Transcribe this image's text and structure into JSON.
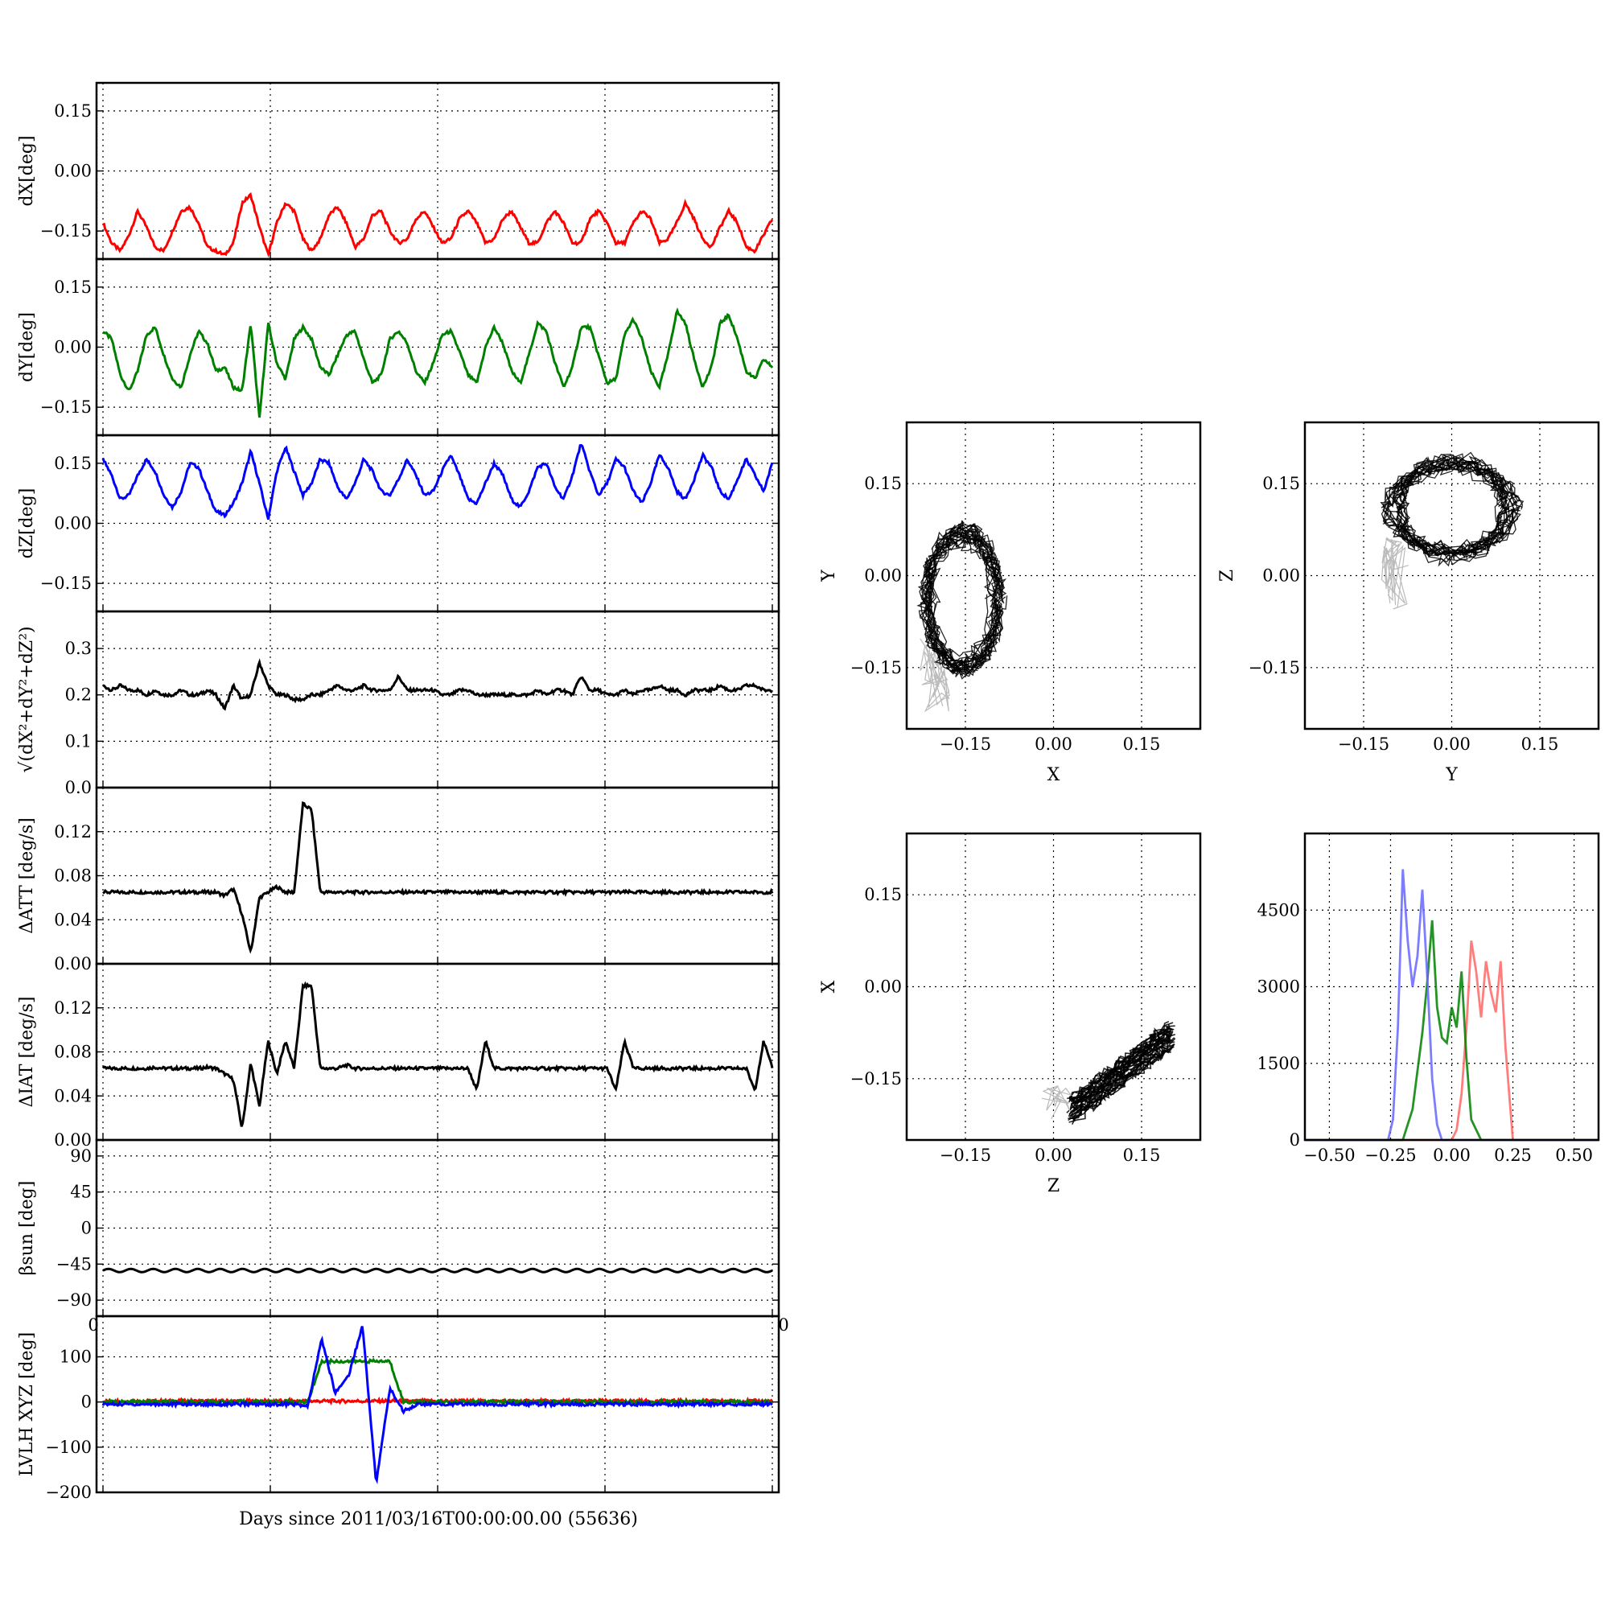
{
  "figure_xlabel": "Days since 2011/03/16T00:00:00.00 (55636)",
  "chart_data": [
    {
      "id": "dX",
      "type": "line",
      "ylabel": "dX[deg]",
      "ylim": [
        -0.22,
        0.22
      ],
      "yticks": [
        "0.15",
        "0.00",
        "−0.15"
      ],
      "ytick_values": [
        0.15,
        0.0,
        -0.15
      ],
      "grid": true,
      "series": [
        {
          "color": "#ff0000",
          "mean": -0.125,
          "amplitude": 0.055,
          "cycles": 16,
          "y": [
            -0.13,
            -0.18,
            -0.2,
            -0.16,
            -0.1,
            -0.14,
            -0.19,
            -0.2,
            -0.15,
            -0.1,
            -0.09,
            -0.13,
            -0.19,
            -0.2,
            -0.21,
            -0.18,
            -0.08,
            -0.06,
            -0.14,
            -0.21,
            -0.13,
            -0.08,
            -0.1,
            -0.17,
            -0.2,
            -0.17,
            -0.11,
            -0.09,
            -0.13,
            -0.19,
            -0.17,
            -0.11,
            -0.1,
            -0.15,
            -0.18,
            -0.17,
            -0.12,
            -0.1,
            -0.14,
            -0.18,
            -0.17,
            -0.12,
            -0.1,
            -0.13,
            -0.18,
            -0.17,
            -0.12,
            -0.1,
            -0.14,
            -0.18,
            -0.18,
            -0.13,
            -0.1,
            -0.13,
            -0.18,
            -0.18,
            -0.12,
            -0.1,
            -0.13,
            -0.18,
            -0.18,
            -0.13,
            -0.1,
            -0.12,
            -0.18,
            -0.17,
            -0.13,
            -0.08,
            -0.12,
            -0.17,
            -0.19,
            -0.14,
            -0.1,
            -0.13,
            -0.19,
            -0.2,
            -0.16,
            -0.12
          ]
        }
      ]
    },
    {
      "id": "dY",
      "type": "line",
      "ylabel": "dY[deg]",
      "ylim": [
        -0.22,
        0.22
      ],
      "yticks": [
        "0.15",
        "0.00",
        "−0.15"
      ],
      "ytick_values": [
        0.15,
        0.0,
        -0.15
      ],
      "grid": true,
      "series": [
        {
          "color": "#008000",
          "y": [
            0.04,
            0.02,
            -0.07,
            -0.11,
            -0.06,
            0.03,
            0.05,
            -0.02,
            -0.08,
            -0.1,
            -0.02,
            0.04,
            0.01,
            -0.06,
            -0.05,
            -0.1,
            -0.11,
            0.06,
            -0.18,
            0.06,
            -0.04,
            -0.08,
            0.02,
            0.05,
            0.02,
            -0.05,
            -0.07,
            -0.02,
            0.03,
            0.04,
            -0.03,
            -0.09,
            -0.07,
            0.02,
            0.04,
            0.01,
            -0.06,
            -0.09,
            -0.04,
            0.03,
            0.04,
            -0.01,
            -0.07,
            -0.09,
            0.0,
            0.05,
            0.01,
            -0.06,
            -0.09,
            -0.02,
            0.06,
            0.04,
            -0.04,
            -0.1,
            -0.05,
            0.05,
            0.05,
            -0.02,
            -0.09,
            -0.08,
            0.03,
            0.07,
            0.02,
            -0.06,
            -0.1,
            -0.02,
            0.09,
            0.06,
            -0.03,
            -0.1,
            -0.05,
            0.06,
            0.08,
            0.02,
            -0.06,
            -0.08,
            -0.03,
            -0.05
          ]
        }
      ]
    },
    {
      "id": "dZ",
      "type": "line",
      "ylabel": "dZ[deg]",
      "ylim": [
        -0.22,
        0.22
      ],
      "yticks": [
        "0.15",
        "0.00",
        "−0.15"
      ],
      "ytick_values": [
        0.15,
        0.0,
        -0.15
      ],
      "grid": true,
      "series": [
        {
          "color": "#0000ff",
          "y": [
            0.16,
            0.12,
            0.06,
            0.07,
            0.12,
            0.16,
            0.13,
            0.07,
            0.04,
            0.08,
            0.15,
            0.14,
            0.08,
            0.03,
            0.02,
            0.05,
            0.1,
            0.18,
            0.1,
            0.01,
            0.13,
            0.19,
            0.13,
            0.07,
            0.1,
            0.16,
            0.15,
            0.09,
            0.06,
            0.1,
            0.16,
            0.13,
            0.08,
            0.07,
            0.11,
            0.16,
            0.12,
            0.07,
            0.08,
            0.13,
            0.17,
            0.12,
            0.06,
            0.05,
            0.1,
            0.15,
            0.12,
            0.06,
            0.04,
            0.08,
            0.14,
            0.15,
            0.09,
            0.06,
            0.12,
            0.2,
            0.13,
            0.07,
            0.1,
            0.16,
            0.14,
            0.08,
            0.05,
            0.1,
            0.17,
            0.14,
            0.08,
            0.06,
            0.11,
            0.17,
            0.14,
            0.08,
            0.06,
            0.11,
            0.16,
            0.12,
            0.08,
            0.15
          ]
        }
      ]
    },
    {
      "id": "norm",
      "type": "line",
      "ylabel": "√(dX²+dY²+dZ²)",
      "ylim": [
        0.0,
        0.38
      ],
      "yticks": [
        "0.3",
        "0.2",
        "0.1",
        "0.0"
      ],
      "ytick_values": [
        0.3,
        0.2,
        0.1,
        0.0
      ],
      "grid": true,
      "series": [
        {
          "color": "#000000",
          "y": [
            0.22,
            0.21,
            0.22,
            0.21,
            0.21,
            0.2,
            0.21,
            0.2,
            0.2,
            0.21,
            0.2,
            0.2,
            0.21,
            0.2,
            0.17,
            0.22,
            0.19,
            0.2,
            0.27,
            0.22,
            0.2,
            0.2,
            0.19,
            0.19,
            0.2,
            0.2,
            0.21,
            0.22,
            0.21,
            0.21,
            0.22,
            0.21,
            0.21,
            0.21,
            0.24,
            0.21,
            0.21,
            0.21,
            0.21,
            0.2,
            0.2,
            0.21,
            0.21,
            0.2,
            0.2,
            0.2,
            0.2,
            0.2,
            0.2,
            0.2,
            0.21,
            0.2,
            0.21,
            0.21,
            0.2,
            0.24,
            0.21,
            0.21,
            0.2,
            0.2,
            0.21,
            0.2,
            0.21,
            0.21,
            0.22,
            0.21,
            0.21,
            0.2,
            0.21,
            0.21,
            0.21,
            0.22,
            0.21,
            0.21,
            0.22,
            0.22,
            0.21,
            0.21
          ]
        }
      ]
    },
    {
      "id": "datt",
      "type": "line",
      "ylabel": "ΔATT [deg/s]",
      "ylim": [
        0.0,
        0.16
      ],
      "yticks": [
        "0.12",
        "0.08",
        "0.04",
        "0.00"
      ],
      "ytick_values": [
        0.12,
        0.08,
        0.04,
        0.0
      ],
      "grid": true,
      "series": [
        {
          "color": "#000000",
          "y": [
            0.065,
            0.065,
            0.065,
            0.065,
            0.065,
            0.065,
            0.065,
            0.065,
            0.065,
            0.065,
            0.065,
            0.065,
            0.065,
            0.065,
            0.062,
            0.068,
            0.045,
            0.01,
            0.06,
            0.065,
            0.07,
            0.065,
            0.065,
            0.145,
            0.14,
            0.065,
            0.065,
            0.065,
            0.065,
            0.065,
            0.065,
            0.065,
            0.065,
            0.065,
            0.065,
            0.065,
            0.065,
            0.065,
            0.065,
            0.065,
            0.065,
            0.065,
            0.065,
            0.065,
            0.065,
            0.065,
            0.065,
            0.065,
            0.065,
            0.065,
            0.065,
            0.065,
            0.065,
            0.065,
            0.065,
            0.065,
            0.065,
            0.065,
            0.065,
            0.065,
            0.065,
            0.065,
            0.065,
            0.065,
            0.065,
            0.065,
            0.065,
            0.065,
            0.065,
            0.065,
            0.065,
            0.065,
            0.065,
            0.065,
            0.065,
            0.065,
            0.065,
            0.065
          ]
        }
      ]
    },
    {
      "id": "diat",
      "type": "line",
      "ylabel": "ΔIAT [deg/s]",
      "ylim": [
        0.0,
        0.16
      ],
      "yticks": [
        "0.12",
        "0.08",
        "0.04",
        "0.00"
      ],
      "ytick_values": [
        0.12,
        0.08,
        0.04,
        0.0
      ],
      "grid": true,
      "series": [
        {
          "color": "#000000",
          "y": [
            0.065,
            0.065,
            0.065,
            0.065,
            0.065,
            0.065,
            0.066,
            0.065,
            0.065,
            0.065,
            0.065,
            0.065,
            0.066,
            0.065,
            0.06,
            0.055,
            0.01,
            0.07,
            0.03,
            0.09,
            0.06,
            0.09,
            0.065,
            0.14,
            0.14,
            0.065,
            0.065,
            0.065,
            0.068,
            0.065,
            0.065,
            0.065,
            0.065,
            0.065,
            0.065,
            0.065,
            0.065,
            0.065,
            0.065,
            0.065,
            0.065,
            0.065,
            0.065,
            0.045,
            0.09,
            0.065,
            0.065,
            0.065,
            0.065,
            0.065,
            0.065,
            0.065,
            0.065,
            0.065,
            0.065,
            0.065,
            0.065,
            0.065,
            0.065,
            0.045,
            0.09,
            0.065,
            0.065,
            0.065,
            0.065,
            0.065,
            0.065,
            0.065,
            0.065,
            0.065,
            0.065,
            0.065,
            0.065,
            0.065,
            0.065,
            0.045,
            0.09,
            0.065
          ]
        }
      ]
    },
    {
      "id": "beta",
      "type": "line",
      "ylabel": "βsun [deg]",
      "ylim": [
        -110,
        110
      ],
      "yticks": [
        "90",
        "45",
        "0",
        "−45",
        "−90"
      ],
      "ytick_values": [
        90,
        45,
        0,
        -45,
        -90
      ],
      "grid": true,
      "series": [
        {
          "color": "#000000",
          "mean": -53,
          "amplitude": 2,
          "cycles": 30
        }
      ],
      "x_tick_left": "0",
      "x_tick_right": "0"
    },
    {
      "id": "lvlh",
      "type": "line",
      "ylabel": "LVLH XYZ [deg]",
      "ylim": [
        -200,
        190
      ],
      "yticks": [
        "100",
        "0",
        "−100",
        "−200"
      ],
      "ytick_values": [
        100,
        0,
        -100,
        -200
      ],
      "grid": true,
      "series": [
        {
          "color": "#ff0000",
          "y": [
            2,
            2,
            2,
            2,
            2,
            2,
            2,
            2,
            2,
            2,
            2,
            2,
            2,
            2,
            2,
            2,
            2,
            2,
            2,
            2,
            2,
            2,
            2,
            2,
            2,
            2,
            2,
            2,
            2,
            2,
            2,
            2,
            2,
            2,
            2,
            2,
            2,
            2,
            2,
            2,
            2,
            2,
            2,
            2,
            2,
            2,
            2,
            2,
            2,
            2
          ]
        },
        {
          "color": "#008000",
          "y": [
            0,
            0,
            0,
            0,
            0,
            0,
            0,
            0,
            0,
            0,
            0,
            0,
            0,
            0,
            0,
            0,
            90,
            90,
            90,
            90,
            90,
            90,
            0,
            0,
            0,
            0,
            0,
            0,
            0,
            0,
            0,
            0,
            0,
            0,
            0,
            0,
            0,
            0,
            0,
            0,
            0,
            0,
            0,
            0,
            0,
            0,
            0,
            0,
            0,
            0
          ]
        },
        {
          "color": "#0000ff",
          "y": [
            -5,
            -5,
            -5,
            -5,
            -5,
            -5,
            -5,
            -5,
            -5,
            -5,
            -5,
            -5,
            -5,
            -5,
            -5,
            -10,
            140,
            20,
            60,
            170,
            -180,
            30,
            -20,
            -5,
            -5,
            -5,
            -5,
            -5,
            -5,
            -5,
            -5,
            -5,
            -5,
            -5,
            -5,
            -5,
            -5,
            -5,
            -5,
            -5,
            -5,
            -5,
            -5,
            -5,
            -5,
            -5,
            -5,
            -5,
            -5,
            -5
          ]
        }
      ]
    },
    {
      "id": "XY",
      "type": "scatter",
      "xlabel": "X",
      "ylabel": "Y",
      "xlim": [
        -0.25,
        0.25
      ],
      "ylim": [
        -0.25,
        0.25
      ],
      "xticks": [
        "−0.15",
        "0.00",
        "0.15"
      ],
      "yticks": [
        "0.15",
        "0.00",
        "−0.15"
      ],
      "ring": {
        "cx": -0.155,
        "cy": -0.04,
        "rx": 0.06,
        "ry": 0.105,
        "color": "#000000"
      },
      "grid": true
    },
    {
      "id": "YZ",
      "type": "scatter",
      "xlabel": "Y",
      "ylabel": "Z",
      "xlim": [
        -0.25,
        0.25
      ],
      "ylim": [
        -0.25,
        0.25
      ],
      "xticks": [
        "−0.15",
        "0.00",
        "0.15"
      ],
      "yticks": [
        "0.15",
        "0.00",
        "−0.15"
      ],
      "ring": {
        "cx": 0.0,
        "cy": 0.11,
        "rx": 0.1,
        "ry": 0.075,
        "color": "#000000"
      },
      "grid": true
    },
    {
      "id": "ZX",
      "type": "scatter",
      "xlabel": "Z",
      "ylabel": "X",
      "xlim": [
        -0.25,
        0.25
      ],
      "ylim": [
        -0.25,
        0.25
      ],
      "xticks": [
        "−0.15",
        "0.00",
        "0.15"
      ],
      "yticks": [
        "0.15",
        "0.00",
        "−0.15"
      ],
      "band": {
        "x0": 0.03,
        "y0": -0.2,
        "x1": 0.2,
        "y1": -0.08,
        "color": "#000000"
      },
      "grid": true
    },
    {
      "id": "hist",
      "type": "line",
      "xlabel": "",
      "ylabel": "",
      "xlim": [
        -0.6,
        0.6
      ],
      "ylim": [
        0,
        6000
      ],
      "xticks": [
        "−0.50",
        "−0.25",
        "0.00",
        "0.25",
        "0.50"
      ],
      "xtick_values": [
        -0.5,
        -0.25,
        0.0,
        0.25,
        0.5
      ],
      "yticks": [
        "4500",
        "3000",
        "1500",
        "0"
      ],
      "ytick_values": [
        4500,
        3000,
        1500,
        0
      ],
      "grid": true,
      "series": [
        {
          "color": "#ff6666",
          "x": [
            -0.6,
            -0.1,
            0.0,
            0.02,
            0.04,
            0.06,
            0.08,
            0.1,
            0.12,
            0.14,
            0.16,
            0.18,
            0.2,
            0.22,
            0.25,
            0.6
          ],
          "y": [
            0,
            0,
            0,
            200,
            900,
            2200,
            3900,
            3300,
            2400,
            3500,
            2900,
            2500,
            3500,
            1800,
            0,
            0
          ]
        },
        {
          "color": "#008000",
          "x": [
            -0.6,
            -0.2,
            -0.16,
            -0.12,
            -0.1,
            -0.08,
            -0.06,
            -0.04,
            -0.02,
            0.0,
            0.02,
            0.04,
            0.06,
            0.08,
            0.12,
            0.6
          ],
          "y": [
            0,
            0,
            600,
            2100,
            3100,
            4300,
            2600,
            2000,
            1900,
            2600,
            2200,
            3300,
            1600,
            400,
            0,
            0
          ]
        },
        {
          "color": "#6666ff",
          "x": [
            -0.6,
            -0.26,
            -0.24,
            -0.22,
            -0.2,
            -0.18,
            -0.16,
            -0.14,
            -0.12,
            -0.1,
            -0.08,
            -0.06,
            -0.04,
            0.6
          ],
          "y": [
            0,
            0,
            400,
            2200,
            5300,
            3900,
            3000,
            3600,
            4900,
            3200,
            1200,
            300,
            0,
            0
          ]
        }
      ]
    }
  ]
}
